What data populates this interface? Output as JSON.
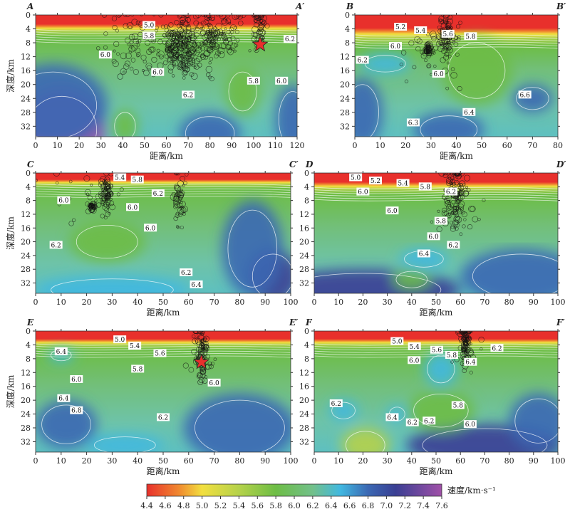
{
  "chart_data": {
    "type": "heatmap",
    "title": "",
    "xlabel": "距离/km",
    "ylabel": "深度/km",
    "yticks": [
      0,
      4,
      8,
      12,
      16,
      20,
      24,
      28,
      32
    ],
    "ylim": [
      0,
      35
    ],
    "colorbar": {
      "label": "速度/km·s⁻¹",
      "ticks": [
        "4.4",
        "4.6",
        "4.8",
        "5.0",
        "5.2",
        "5.4",
        "5.6",
        "5.8",
        "6.0",
        "6.2",
        "6.4",
        "6.6",
        "6.8",
        "7.0",
        "7.2",
        "7.4",
        "7.6"
      ],
      "range": [
        4.4,
        7.6
      ],
      "colors": [
        "#e8302c",
        "#f08a30",
        "#f2df40",
        "#b5d24a",
        "#6dbd45",
        "#72c08a",
        "#41b8e0",
        "#3b68b3",
        "#3a3f93",
        "#a050a8"
      ]
    },
    "panels": [
      {
        "id": "A",
        "start": "A",
        "end": "A′",
        "xmax": 120,
        "xticks": [
          0,
          10,
          20,
          30,
          40,
          50,
          60,
          70,
          80,
          90,
          100,
          110,
          120
        ],
        "surface_depth": 3.5,
        "blobs": [
          {
            "x": 12,
            "y": 33,
            "rx": 20,
            "ry": 12,
            "v": 7.4
          },
          {
            "x": 8,
            "y": 26,
            "rx": 25,
            "ry": 12,
            "v": 6.9
          },
          {
            "x": 80,
            "y": 34,
            "rx": 14,
            "ry": 6,
            "v": 6.8
          },
          {
            "x": 118,
            "y": 30,
            "rx": 8,
            "ry": 10,
            "v": 6.8
          },
          {
            "x": 95,
            "y": 22,
            "rx": 8,
            "ry": 7,
            "v": 5.8
          },
          {
            "x": 41,
            "y": 32,
            "rx": 6,
            "ry": 5,
            "v": 5.8
          }
        ],
        "contours": [
          {
            "t": "5.0",
            "x": 52,
            "y": 3
          },
          {
            "t": "5.8",
            "x": 52,
            "y": 6
          },
          {
            "t": "6.0",
            "x": 32,
            "y": 11.5
          },
          {
            "t": "6.0",
            "x": 56,
            "y": 16.5
          },
          {
            "t": "6.2",
            "x": 70,
            "y": 23
          },
          {
            "t": "5.8",
            "x": 100,
            "y": 19
          },
          {
            "t": "6.0",
            "x": 106,
            "y": 19
          },
          {
            "t": "6.2",
            "x": 118,
            "y": 7
          }
        ],
        "quakes": [
          {
            "x": 45,
            "y": 6,
            "sx": 8,
            "sy": 4,
            "n": 60
          },
          {
            "x": 63,
            "y": 9,
            "sx": 2,
            "sy": 3,
            "n": 90
          },
          {
            "x": 69,
            "y": 8,
            "sx": 2,
            "sy": 5,
            "n": 120
          },
          {
            "x": 80,
            "y": 7,
            "sx": 3,
            "sy": 4,
            "n": 100
          },
          {
            "x": 88,
            "y": 5,
            "sx": 3,
            "sy": 4,
            "n": 50
          },
          {
            "x": 103,
            "y": 3,
            "sx": 1.5,
            "sy": 3,
            "n": 50
          },
          {
            "x": 60,
            "y": 12,
            "sx": 12,
            "sy": 3,
            "n": 50
          }
        ],
        "star": {
          "x": 103,
          "y": 8.5
        }
      },
      {
        "id": "B",
        "start": "B",
        "end": "B′",
        "xmax": 80,
        "xticks": [
          0,
          10,
          20,
          30,
          40,
          50,
          60,
          70,
          80
        ],
        "surface_depth": 5,
        "blobs": [
          {
            "x": 3,
            "y": 28,
            "rx": 8,
            "ry": 10,
            "v": 6.9
          },
          {
            "x": 37,
            "y": 33,
            "rx": 14,
            "ry": 5,
            "v": 6.9
          },
          {
            "x": 70,
            "y": 24,
            "rx": 8,
            "ry": 4,
            "v": 6.7
          },
          {
            "x": 12,
            "y": 14,
            "rx": 10,
            "ry": 3,
            "v": 6.4
          },
          {
            "x": 48,
            "y": 16,
            "rx": 14,
            "ry": 10,
            "v": 5.9
          }
        ],
        "contours": [
          {
            "t": "5.2",
            "x": 18,
            "y": 3.5
          },
          {
            "t": "5.4",
            "x": 20,
            "y": 4.5
          },
          {
            "t": "5.6",
            "x": 19,
            "y": 5.5
          },
          {
            "t": "5.8",
            "x": 22,
            "y": 6.2
          },
          {
            "t": "6.0",
            "x": 16,
            "y": 9
          },
          {
            "t": "6.2",
            "x": 3,
            "y": 13
          },
          {
            "t": "6.0",
            "x": 33,
            "y": 17
          },
          {
            "t": "6.6",
            "x": 67,
            "y": 23
          },
          {
            "t": "6.4",
            "x": 45,
            "y": 28
          },
          {
            "t": "6.3",
            "x": 23,
            "y": 31
          }
        ],
        "quakes": [
          {
            "x": 29,
            "y": 10,
            "sx": 0.8,
            "sy": 0.8,
            "n": 40
          },
          {
            "x": 36,
            "y": 6,
            "sx": 1.5,
            "sy": 3,
            "n": 90
          },
          {
            "x": 33,
            "y": 10,
            "sx": 8,
            "sy": 6,
            "n": 40
          }
        ],
        "star": null
      },
      {
        "id": "C",
        "start": "C",
        "end": "C′",
        "xmax": 100,
        "xticks": [
          0,
          10,
          20,
          30,
          40,
          50,
          60,
          70,
          80,
          90,
          100
        ],
        "surface_depth": 2.5,
        "blobs": [
          {
            "x": 93,
            "y": 30,
            "rx": 10,
            "ry": 8,
            "v": 7.1
          },
          {
            "x": 85,
            "y": 22,
            "rx": 12,
            "ry": 14,
            "v": 6.7
          },
          {
            "x": 30,
            "y": 34,
            "rx": 30,
            "ry": 4,
            "v": 6.4
          },
          {
            "x": 28,
            "y": 20,
            "rx": 15,
            "ry": 6,
            "v": 5.9
          }
        ],
        "contours": [
          {
            "t": "5.4",
            "x": 33,
            "y": 0.5
          },
          {
            "t": "5.8",
            "x": 34,
            "y": 2
          },
          {
            "t": "6.0",
            "x": 11,
            "y": 8
          },
          {
            "t": "6.2",
            "x": 48,
            "y": 6
          },
          {
            "t": "6.0",
            "x": 38,
            "y": 10
          },
          {
            "t": "6.0",
            "x": 45,
            "y": 16
          },
          {
            "t": "6.2",
            "x": 8,
            "y": 21
          },
          {
            "t": "6.2",
            "x": 59,
            "y": 29
          },
          {
            "t": "6.4",
            "x": 63,
            "y": 32.5
          }
        ],
        "quakes": [
          {
            "x": 22,
            "y": 10,
            "sx": 0.7,
            "sy": 0.7,
            "n": 30
          },
          {
            "x": 28,
            "y": 6,
            "sx": 1.2,
            "sy": 3,
            "n": 80
          },
          {
            "x": 56,
            "y": 7,
            "sx": 1.5,
            "sy": 4,
            "n": 50
          },
          {
            "x": 15,
            "y": 8,
            "sx": 8,
            "sy": 4,
            "n": 20
          }
        ],
        "star": null
      },
      {
        "id": "D",
        "start": "D",
        "end": "D′",
        "xmax": 100,
        "xticks": [
          0,
          10,
          20,
          30,
          40,
          50,
          60,
          70,
          80,
          90,
          100
        ],
        "surface_depth": 3.5,
        "blobs": [
          {
            "x": 20,
            "y": 34,
            "rx": 40,
            "ry": 6,
            "v": 7.0
          },
          {
            "x": 85,
            "y": 30,
            "rx": 25,
            "ry": 8,
            "v": 6.9
          },
          {
            "x": 45,
            "y": 25,
            "rx": 10,
            "ry": 3,
            "v": 6.5
          },
          {
            "x": 40,
            "y": 31,
            "rx": 8,
            "ry": 3,
            "v": 5.9
          }
        ],
        "contours": [
          {
            "t": "5.0",
            "x": 17,
            "y": 1
          },
          {
            "t": "5.2",
            "x": 19,
            "y": 2.3
          },
          {
            "t": "5.4",
            "x": 18,
            "y": 3
          },
          {
            "t": "5.8",
            "x": 21,
            "y": 4
          },
          {
            "t": "6.0",
            "x": 20,
            "y": 5.5
          },
          {
            "t": "6.2",
            "x": 50,
            "y": 5.5
          },
          {
            "t": "6.0",
            "x": 32,
            "y": 11
          },
          {
            "t": "5.8",
            "x": 52,
            "y": 14
          },
          {
            "t": "6.0",
            "x": 49,
            "y": 18.5
          },
          {
            "t": "6.2",
            "x": 51,
            "y": 21
          },
          {
            "t": "6.4",
            "x": 45,
            "y": 23.5
          }
        ],
        "quakes": [
          {
            "x": 58,
            "y": 6,
            "sx": 2,
            "sy": 5,
            "n": 120
          },
          {
            "x": 58,
            "y": 12,
            "sx": 5,
            "sy": 4,
            "n": 30
          }
        ],
        "star": null
      },
      {
        "id": "E",
        "start": "E",
        "end": "E′",
        "xmax": 100,
        "xticks": [
          0,
          10,
          20,
          30,
          40,
          50,
          60,
          70,
          80,
          90,
          100
        ],
        "surface_depth": 3,
        "blobs": [
          {
            "x": 12,
            "y": 27,
            "rx": 12,
            "ry": 7,
            "v": 6.9
          },
          {
            "x": 80,
            "y": 28,
            "rx": 22,
            "ry": 10,
            "v": 6.9
          },
          {
            "x": 35,
            "y": 33,
            "rx": 15,
            "ry": 3,
            "v": 6.6
          },
          {
            "x": 10,
            "y": 7,
            "rx": 5,
            "ry": 2,
            "v": 6.4
          }
        ],
        "contours": [
          {
            "t": "5.0",
            "x": 33,
            "y": 2.5
          },
          {
            "t": "5.4",
            "x": 33,
            "y": 4.3
          },
          {
            "t": "5.6",
            "x": 37,
            "y": 6.5
          },
          {
            "t": "5.8",
            "x": 40,
            "y": 11
          },
          {
            "t": "6.0",
            "x": 16,
            "y": 14
          },
          {
            "t": "6.4",
            "x": 10,
            "y": 6
          },
          {
            "t": "6.4",
            "x": 11,
            "y": 19.5
          },
          {
            "t": "6.8",
            "x": 16,
            "y": 23
          },
          {
            "t": "6.2",
            "x": 50,
            "y": 25
          },
          {
            "t": "6.0",
            "x": 70,
            "y": 15
          }
        ],
        "quakes": [
          {
            "x": 65,
            "y": 6,
            "sx": 1.2,
            "sy": 4,
            "n": 80
          },
          {
            "x": 66,
            "y": 9,
            "sx": 3,
            "sy": 3,
            "n": 20
          }
        ],
        "star": {
          "x": 65,
          "y": 9
        }
      },
      {
        "id": "F",
        "start": "F",
        "end": "F′",
        "xmax": 100,
        "xticks": [
          0,
          10,
          20,
          30,
          40,
          50,
          60,
          70,
          80,
          90,
          100
        ],
        "surface_depth": 3,
        "blobs": [
          {
            "x": 70,
            "y": 33,
            "rx": 32,
            "ry": 6,
            "v": 7.0
          },
          {
            "x": 92,
            "y": 26,
            "rx": 12,
            "ry": 8,
            "v": 6.7
          },
          {
            "x": 52,
            "y": 11,
            "rx": 7,
            "ry": 5,
            "v": 6.6
          },
          {
            "x": 52,
            "y": 23,
            "rx": 14,
            "ry": 6,
            "v": 5.8
          },
          {
            "x": 21,
            "y": 33,
            "rx": 10,
            "ry": 5,
            "v": 5.6
          },
          {
            "x": 12,
            "y": 23,
            "rx": 6,
            "ry": 3,
            "v": 6.4
          },
          {
            "x": 34,
            "y": 24,
            "rx": 4,
            "ry": 2.5,
            "v": 6.5
          }
        ],
        "contours": [
          {
            "t": "5.0",
            "x": 34,
            "y": 3
          },
          {
            "t": "5.4",
            "x": 35,
            "y": 4.5
          },
          {
            "t": "5.6",
            "x": 38,
            "y": 5.5
          },
          {
            "t": "5.8",
            "x": 38,
            "y": 7
          },
          {
            "t": "6.0",
            "x": 41,
            "y": 8.5
          },
          {
            "t": "6.4",
            "x": 58,
            "y": 9
          },
          {
            "t": "6.2",
            "x": 75,
            "y": 5
          },
          {
            "t": "6.2",
            "x": 9,
            "y": 21
          },
          {
            "t": "6.4",
            "x": 32,
            "y": 25
          },
          {
            "t": "6.2",
            "x": 28,
            "y": 26.5
          },
          {
            "t": "6.2",
            "x": 41,
            "y": 26
          },
          {
            "t": "5.8",
            "x": 59,
            "y": 21.5
          },
          {
            "t": "6.0",
            "x": 64,
            "y": 27
          }
        ],
        "quakes": [
          {
            "x": 62,
            "y": 3,
            "sx": 1,
            "sy": 3,
            "n": 90
          },
          {
            "x": 63,
            "y": 7,
            "sx": 3,
            "sy": 3,
            "n": 20
          }
        ],
        "star": null
      }
    ]
  }
}
